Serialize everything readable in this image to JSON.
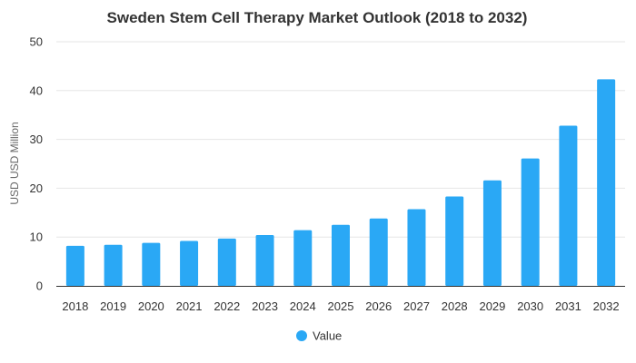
{
  "chart_data": {
    "type": "bar",
    "title": "Sweden Stem Cell Therapy Market Outlook (2018 to 2032)",
    "xlabel": "",
    "ylabel": "USD USD Million",
    "ylim": [
      0,
      50
    ],
    "yticks": [
      0,
      10,
      20,
      30,
      40,
      50
    ],
    "grid": true,
    "legend_position": "bottom-center",
    "categories": [
      "2018",
      "2019",
      "2020",
      "2021",
      "2022",
      "2023",
      "2024",
      "2025",
      "2026",
      "2027",
      "2028",
      "2029",
      "2030",
      "2031",
      "2032"
    ],
    "series": [
      {
        "name": "Value",
        "color": "#2aa8f5",
        "values": [
          8.2,
          8.4,
          8.8,
          9.2,
          9.7,
          10.4,
          11.4,
          12.5,
          13.8,
          15.7,
          18.3,
          21.6,
          26.1,
          32.8,
          42.3
        ]
      }
    ]
  }
}
